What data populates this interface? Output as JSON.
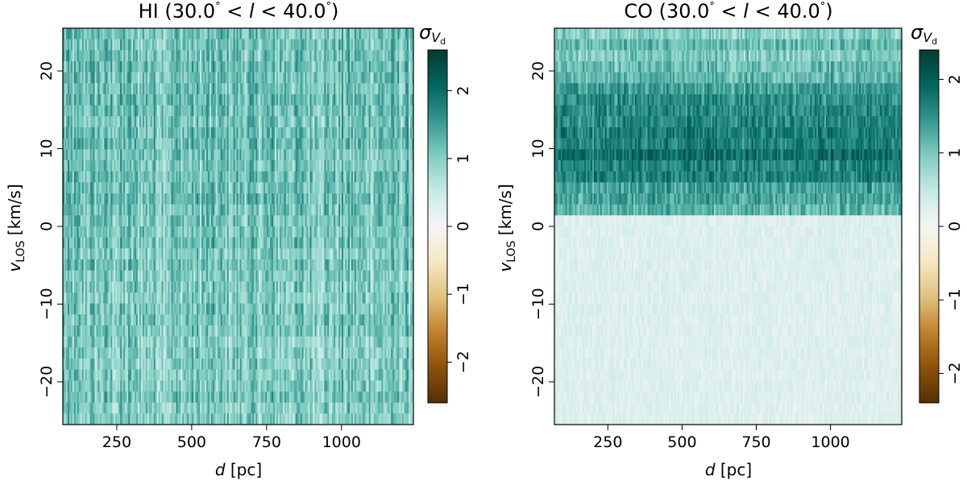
{
  "chart_data": [
    {
      "type": "heatmap",
      "title": "HI (30.0° < l < 40.0°)",
      "title_prefix": "HI (30.0",
      "title_mid": " < ",
      "title_var": "l",
      "title_mid2": " < 40.0",
      "title_suffix": ")",
      "xlabel_var": "d",
      "xlabel_unit": " [pc]",
      "ylabel_var": "v",
      "ylabel_sub": "LOS",
      "ylabel_unit": " [km/s]",
      "xlim": [
        70,
        1240
      ],
      "ylim": [
        -25.5,
        25.5
      ],
      "xticks": [
        250,
        500,
        750,
        1000
      ],
      "xtick_labels": [
        "250",
        "500",
        "750",
        "1000"
      ],
      "yticks": [
        -20,
        -10,
        0,
        10,
        20
      ],
      "ytick_labels": [
        "−20",
        "−10",
        "0",
        "10",
        "20"
      ],
      "colorbar": {
        "label_var": "σ",
        "label_sub": "V",
        "label_subsub": "d",
        "range": [
          -2.6,
          2.6
        ],
        "ticks": [
          -2,
          -1,
          0,
          1,
          2
        ],
        "tick_labels": [
          "−2",
          "−1",
          "0",
          "1",
          "2"
        ],
        "colormap": "BrBG"
      },
      "field_description": "positive values throughout; mean ~1.2 above v=0, mean ~1.05 below, strong vertical streaks"
    },
    {
      "type": "heatmap",
      "title": "CO (30.0° < l < 40.0°)",
      "title_prefix": "CO (30.0",
      "title_mid": " < ",
      "title_var": "l",
      "title_mid2": " < 40.0",
      "title_suffix": ")",
      "xlabel_var": "d",
      "xlabel_unit": " [pc]",
      "ylabel_var": "v",
      "ylabel_sub": "LOS",
      "ylabel_unit": " [km/s]",
      "xlim": [
        70,
        1240
      ],
      "ylim": [
        -25.5,
        25.5
      ],
      "xticks": [
        250,
        500,
        750,
        1000
      ],
      "xtick_labels": [
        "250",
        "500",
        "750",
        "1000"
      ],
      "yticks": [
        -20,
        -10,
        0,
        10,
        20
      ],
      "ytick_labels": [
        "−20",
        "−10",
        "0",
        "10",
        "20"
      ],
      "colorbar": {
        "label_var": "σ",
        "label_sub": "V",
        "label_subsub": "d",
        "range": [
          -2.4,
          2.4
        ],
        "ticks": [
          -2,
          -1,
          0,
          1,
          2
        ],
        "tick_labels": [
          "−2",
          "−1",
          "0",
          "1",
          "2"
        ],
        "colormap": "BrBG"
      },
      "field_description": "values ~1.0–1.8 for v > 1.5 km/s (peak near v=10), ~0.25 for v < 1.5 km/s"
    }
  ],
  "colors": {
    "brbg_stops": [
      "#543005",
      "#8c510a",
      "#bf812d",
      "#dfc27d",
      "#f6e8c3",
      "#f5f5f5",
      "#c7eae5",
      "#80cdc1",
      "#35978f",
      "#01665e",
      "#003c30"
    ]
  }
}
